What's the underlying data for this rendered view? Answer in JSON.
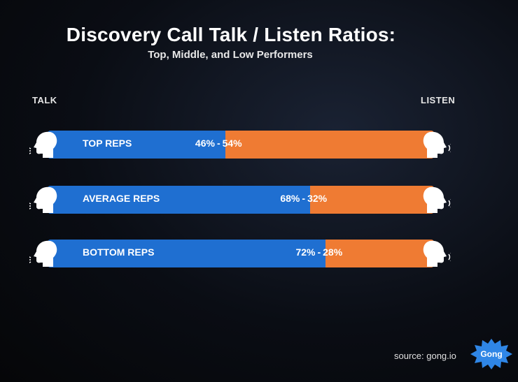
{
  "chart_data": {
    "type": "bar",
    "title": "Discovery Call Talk / Listen Ratios:",
    "subtitle": "Top, Middle, and Low Performers",
    "left_label": "TALK",
    "right_label": "LISTEN",
    "categories": [
      "TOP REPS",
      "AVERAGE REPS",
      "BOTTOM REPS"
    ],
    "series": [
      {
        "name": "TALK",
        "values": [
          46,
          68,
          72
        ],
        "color": "#1f6fd1"
      },
      {
        "name": "LISTEN",
        "values": [
          54,
          32,
          28
        ],
        "color": "#ef7b33"
      }
    ],
    "value_labels": [
      {
        "talk": "46%",
        "listen": "54%"
      },
      {
        "talk": "68%",
        "listen": "32%"
      },
      {
        "talk": "72%",
        "listen": "28%"
      }
    ],
    "stacked": true,
    "orientation": "horizontal",
    "xlim": [
      0,
      100
    ]
  },
  "footer": {
    "source": "source: gong.io",
    "logo_text": "Gong",
    "logo_color": "#2f86e6"
  }
}
